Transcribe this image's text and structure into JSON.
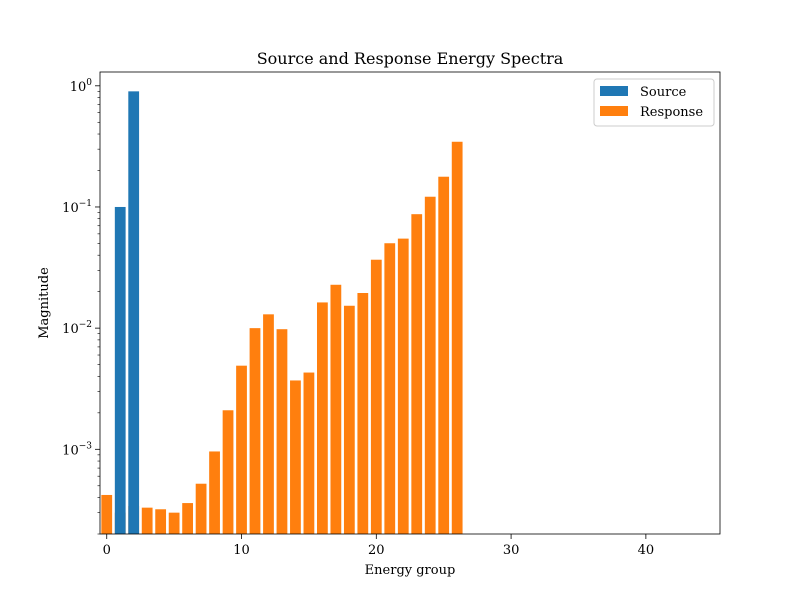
{
  "chart_data": {
    "type": "bar",
    "title": "Source and Response Energy Spectra",
    "xlabel": "Energy group",
    "ylabel": "Magnitude",
    "yscale": "log",
    "xlim": [
      -0.5,
      45.5
    ],
    "ylim": [
      0.0002,
      1.3
    ],
    "grid": false,
    "legend_position": "top-right",
    "x_ticks": [
      {
        "value": 0,
        "label": "0"
      },
      {
        "value": 10,
        "label": "10"
      },
      {
        "value": 20,
        "label": "20"
      },
      {
        "value": 30,
        "label": "30"
      },
      {
        "value": 40,
        "label": "40"
      }
    ],
    "y_ticks": [
      {
        "value": 0.001,
        "base": "10",
        "exp": "−3"
      },
      {
        "value": 0.01,
        "base": "10",
        "exp": "−2"
      },
      {
        "value": 0.1,
        "base": "10",
        "exp": "−1"
      },
      {
        "value": 1,
        "base": "10",
        "exp": "0"
      }
    ],
    "series": [
      {
        "name": "Source",
        "color": "#1f77b4",
        "x": [
          1,
          2
        ],
        "values": [
          0.1,
          0.9
        ]
      },
      {
        "name": "Response",
        "color": "#ff7f0e",
        "x": [
          0,
          1,
          2,
          3,
          4,
          5,
          6,
          7,
          8,
          9,
          10,
          11,
          12,
          13,
          14,
          15,
          16,
          17,
          18,
          19,
          20,
          21,
          22,
          23,
          24,
          25,
          26
        ],
        "values": [
          0.00042,
          0.0003,
          0.00034,
          0.00033,
          0.00032,
          0.0003,
          0.00036,
          0.00052,
          0.00096,
          0.0021,
          0.0049,
          0.01,
          0.013,
          0.0098,
          0.0037,
          0.0043,
          0.0163,
          0.0228,
          0.0153,
          0.0195,
          0.0367,
          0.0502,
          0.0548,
          0.0872,
          0.1215,
          0.1777,
          0.3453
        ]
      }
    ]
  }
}
